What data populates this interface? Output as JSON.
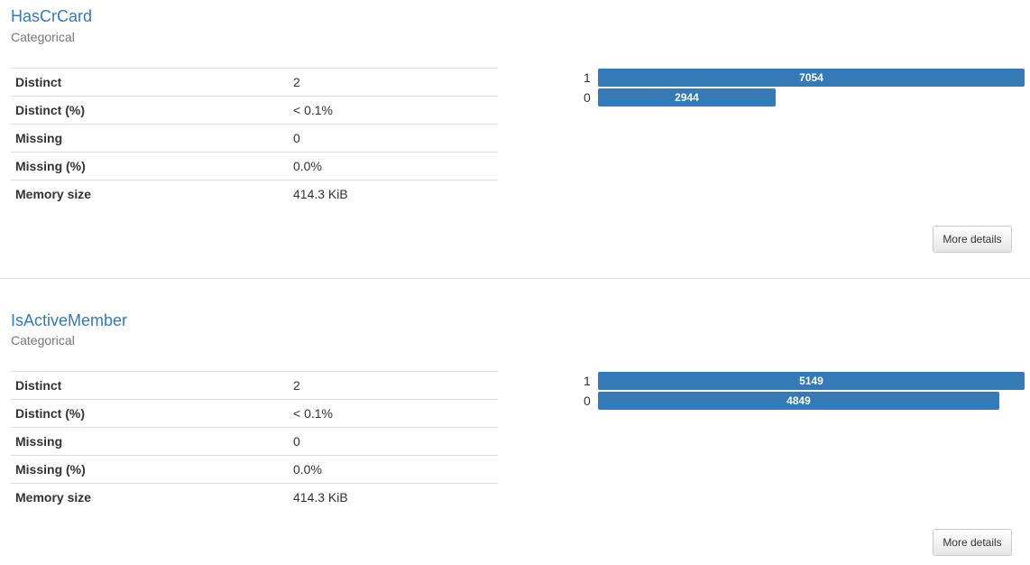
{
  "variables": [
    {
      "title": "HasCrCard",
      "type": "Categorical",
      "stats": [
        {
          "label": "Distinct",
          "value": "2"
        },
        {
          "label": "Distinct (%)",
          "value": "< 0.1%"
        },
        {
          "label": "Missing",
          "value": "0"
        },
        {
          "label": "Missing (%)",
          "value": "0.0%"
        },
        {
          "label": "Memory size",
          "value": "414.3 KiB"
        }
      ],
      "more_details_label": "More details",
      "chart_data": {
        "type": "bar",
        "categories": [
          "1",
          "0"
        ],
        "values": [
          7054,
          2944
        ]
      }
    },
    {
      "title": "IsActiveMember",
      "type": "Categorical",
      "stats": [
        {
          "label": "Distinct",
          "value": "2"
        },
        {
          "label": "Distinct (%)",
          "value": "< 0.1%"
        },
        {
          "label": "Missing",
          "value": "0"
        },
        {
          "label": "Missing (%)",
          "value": "0.0%"
        },
        {
          "label": "Memory size",
          "value": "414.3 KiB"
        }
      ],
      "more_details_label": "More details",
      "chart_data": {
        "type": "bar",
        "categories": [
          "1",
          "0"
        ],
        "values": [
          5149,
          4849
        ]
      }
    }
  ],
  "colors": {
    "title": "#337ab7",
    "bar": "#337ab7",
    "subtitle": "#777777"
  }
}
